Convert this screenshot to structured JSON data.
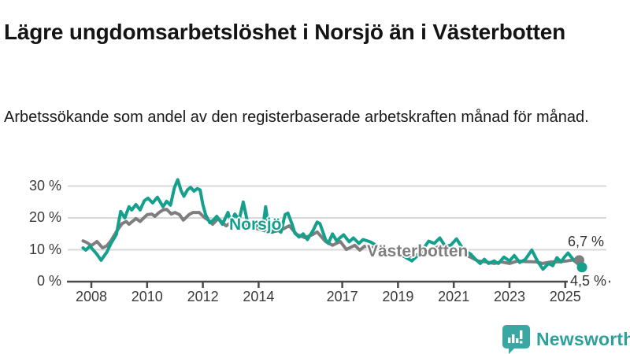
{
  "header": {
    "title": "Lägre ungdomsarbetslöshet i Norsjö än i Västerbotten",
    "subtitle": "Arbetssökande som andel av den registerbaserade arbetskraften månad för månad."
  },
  "colors": {
    "norsjo": "#14a08c",
    "vasterbotten": "#7e7e7e",
    "grid": "#d8d8d8",
    "axis": "#4a4a4a",
    "tick_text": "#3a3a3a",
    "logo_teal": "#3aa7a3"
  },
  "logo": {
    "text": "Newsworthy"
  },
  "chart_data": {
    "type": "line",
    "title": "Lägre ungdomsarbetslöshet i Norsjö än i Västerbotten",
    "subtitle": "Arbetssökande som andel av den registerbaserade arbetskraften månad för månad.",
    "xlabel": "",
    "ylabel": "",
    "grid": "horizontal",
    "legend_position": "inline-labels",
    "xlim": [
      2007.45,
      2025.95
    ],
    "ylim": [
      0,
      35
    ],
    "x_ticks": [
      2008,
      2010,
      2012,
      2014,
      2017,
      2019,
      2021,
      2023,
      2025
    ],
    "x_tick_labels": [
      "2008",
      "2010",
      "2012",
      "2014",
      "2017",
      "2019",
      "2021",
      "2023",
      "2025"
    ],
    "y_ticks": [
      0,
      10,
      20,
      30
    ],
    "y_tick_labels": [
      "0 %",
      "10 %",
      "20 %",
      "30 %"
    ],
    "series": [
      {
        "name": "Norsjö",
        "end_label": "4,5 %",
        "end_value": 4.5,
        "points": [
          [
            2007.7,
            10.6
          ],
          [
            2007.8,
            9.9
          ],
          [
            2007.95,
            11.1
          ],
          [
            2008.1,
            9.6
          ],
          [
            2008.2,
            8.6
          ],
          [
            2008.35,
            6.7
          ],
          [
            2008.55,
            9.2
          ],
          [
            2008.7,
            11.9
          ],
          [
            2008.9,
            14.9
          ],
          [
            2009.05,
            22.0
          ],
          [
            2009.2,
            20.0
          ],
          [
            2009.35,
            23.5
          ],
          [
            2009.45,
            22.5
          ],
          [
            2009.6,
            24.2
          ],
          [
            2009.75,
            22.5
          ],
          [
            2009.9,
            25.4
          ],
          [
            2010.03,
            26.2
          ],
          [
            2010.2,
            24.7
          ],
          [
            2010.37,
            26.5
          ],
          [
            2010.57,
            23.5
          ],
          [
            2010.7,
            25.2
          ],
          [
            2010.84,
            24.0
          ],
          [
            2010.98,
            29.5
          ],
          [
            2011.1,
            32.0
          ],
          [
            2011.22,
            28.5
          ],
          [
            2011.32,
            26.8
          ],
          [
            2011.45,
            28.8
          ],
          [
            2011.56,
            29.6
          ],
          [
            2011.68,
            28.4
          ],
          [
            2011.8,
            29.2
          ],
          [
            2011.9,
            28.8
          ],
          [
            2012.0,
            24.2
          ],
          [
            2012.1,
            21.0
          ],
          [
            2012.25,
            18.5
          ],
          [
            2012.4,
            19.5
          ],
          [
            2012.5,
            20.5
          ],
          [
            2012.7,
            18.0
          ],
          [
            2012.9,
            21.7
          ],
          [
            2013.0,
            18.8
          ],
          [
            2013.15,
            21.2
          ],
          [
            2013.3,
            19.3
          ],
          [
            2013.45,
            25.0
          ],
          [
            2013.6,
            18.8
          ],
          [
            2013.75,
            17.0
          ],
          [
            2013.9,
            18.0
          ],
          [
            2014.05,
            16.5
          ],
          [
            2014.15,
            16.8
          ],
          [
            2014.25,
            23.5
          ],
          [
            2014.35,
            17.5
          ],
          [
            2014.5,
            15.5
          ],
          [
            2014.65,
            16.5
          ],
          [
            2014.8,
            15.5
          ],
          [
            2014.95,
            21.0
          ],
          [
            2015.05,
            21.5
          ],
          [
            2015.2,
            18.0
          ],
          [
            2015.3,
            15.2
          ],
          [
            2015.45,
            14.0
          ],
          [
            2015.6,
            15.0
          ],
          [
            2015.75,
            13.2
          ],
          [
            2015.95,
            16.0
          ],
          [
            2016.1,
            18.7
          ],
          [
            2016.2,
            18.2
          ],
          [
            2016.4,
            13.2
          ],
          [
            2016.5,
            12.0
          ],
          [
            2016.65,
            15.0
          ],
          [
            2016.8,
            12.8
          ],
          [
            2016.95,
            14.0
          ],
          [
            2017.05,
            14.7
          ],
          [
            2017.25,
            12.5
          ],
          [
            2017.4,
            13.7
          ],
          [
            2017.6,
            12.0
          ],
          [
            2017.75,
            13.2
          ],
          [
            2018.0,
            12.5
          ],
          [
            2018.3,
            11.0
          ],
          [
            2018.6,
            10.0
          ],
          [
            2018.9,
            9.0
          ],
          [
            2019.2,
            8.0
          ],
          [
            2019.5,
            6.5
          ],
          [
            2019.8,
            9.0
          ],
          [
            2020.1,
            12.7
          ],
          [
            2020.3,
            12.0
          ],
          [
            2020.5,
            13.7
          ],
          [
            2020.7,
            11.0
          ],
          [
            2020.9,
            11.5
          ],
          [
            2021.1,
            13.4
          ],
          [
            2021.35,
            10.0
          ],
          [
            2021.6,
            8.7
          ],
          [
            2021.78,
            7.0
          ],
          [
            2021.95,
            5.7
          ],
          [
            2022.1,
            7.0
          ],
          [
            2022.25,
            5.7
          ],
          [
            2022.45,
            6.5
          ],
          [
            2022.6,
            5.7
          ],
          [
            2022.8,
            7.7
          ],
          [
            2023.0,
            6.5
          ],
          [
            2023.17,
            8.2
          ],
          [
            2023.37,
            6.0
          ],
          [
            2023.57,
            7.0
          ],
          [
            2023.8,
            9.9
          ],
          [
            2024.0,
            6.5
          ],
          [
            2024.2,
            3.9
          ],
          [
            2024.4,
            5.7
          ],
          [
            2024.55,
            5.0
          ],
          [
            2024.7,
            7.5
          ],
          [
            2024.85,
            6.2
          ],
          [
            2024.97,
            7.7
          ],
          [
            2025.1,
            9.0
          ],
          [
            2025.33,
            6.5
          ],
          [
            2025.6,
            4.5
          ]
        ]
      },
      {
        "name": "Västerbotten",
        "end_label": "6,7 %",
        "end_value": 6.7,
        "points": [
          [
            2007.7,
            12.8
          ],
          [
            2007.85,
            12.2
          ],
          [
            2008.0,
            11.3
          ],
          [
            2008.2,
            12.6
          ],
          [
            2008.4,
            10.6
          ],
          [
            2008.55,
            11.2
          ],
          [
            2008.7,
            12.8
          ],
          [
            2008.9,
            15.7
          ],
          [
            2009.1,
            18.2
          ],
          [
            2009.25,
            18.9
          ],
          [
            2009.35,
            18.0
          ],
          [
            2009.6,
            19.8
          ],
          [
            2009.75,
            18.9
          ],
          [
            2010.0,
            21.0
          ],
          [
            2010.17,
            21.2
          ],
          [
            2010.28,
            20.5
          ],
          [
            2010.43,
            21.7
          ],
          [
            2010.57,
            22.5
          ],
          [
            2010.7,
            22.7
          ],
          [
            2010.87,
            21.2
          ],
          [
            2011.0,
            21.7
          ],
          [
            2011.16,
            21.0
          ],
          [
            2011.3,
            19.3
          ],
          [
            2011.5,
            21.0
          ],
          [
            2011.64,
            21.7
          ],
          [
            2011.87,
            21.7
          ],
          [
            2012.07,
            20.0
          ],
          [
            2012.2,
            19.3
          ],
          [
            2012.35,
            18.0
          ],
          [
            2012.55,
            19.8
          ],
          [
            2012.83,
            17.5
          ],
          [
            2013.05,
            18.8
          ],
          [
            2013.2,
            18.5
          ],
          [
            2013.4,
            18.0
          ],
          [
            2013.6,
            17.5
          ],
          [
            2013.8,
            17.0
          ],
          [
            2014.0,
            16.5
          ],
          [
            2014.2,
            16.0
          ],
          [
            2014.4,
            15.5
          ],
          [
            2014.6,
            15.8
          ],
          [
            2014.8,
            16.2
          ],
          [
            2015.1,
            17.5
          ],
          [
            2015.37,
            14.8
          ],
          [
            2015.66,
            13.8
          ],
          [
            2015.94,
            14.8
          ],
          [
            2016.1,
            15.6
          ],
          [
            2016.4,
            12.6
          ],
          [
            2016.65,
            11.4
          ],
          [
            2016.93,
            12.6
          ],
          [
            2017.15,
            10.1
          ],
          [
            2017.45,
            11.4
          ],
          [
            2017.63,
            9.9
          ],
          [
            2017.8,
            11.1
          ],
          [
            2018.2,
            10.5
          ],
          [
            2018.5,
            9.5
          ],
          [
            2018.8,
            9.0
          ],
          [
            2019.1,
            8.5
          ],
          [
            2019.4,
            8.0
          ],
          [
            2019.7,
            8.5
          ],
          [
            2020.0,
            9.5
          ],
          [
            2020.3,
            10.5
          ],
          [
            2020.5,
            11.0
          ],
          [
            2020.8,
            10.0
          ],
          [
            2021.1,
            9.5
          ],
          [
            2021.4,
            8.5
          ],
          [
            2021.6,
            7.7
          ],
          [
            2021.87,
            6.5
          ],
          [
            2022.15,
            6.2
          ],
          [
            2022.45,
            5.7
          ],
          [
            2022.7,
            6.2
          ],
          [
            2023.0,
            5.7
          ],
          [
            2023.3,
            6.5
          ],
          [
            2023.57,
            6.3
          ],
          [
            2023.94,
            6.2
          ],
          [
            2024.2,
            5.7
          ],
          [
            2024.5,
            6.2
          ],
          [
            2024.78,
            6.2
          ],
          [
            2025.06,
            6.5
          ],
          [
            2025.33,
            6.9
          ],
          [
            2025.5,
            6.7
          ]
        ]
      }
    ]
  }
}
